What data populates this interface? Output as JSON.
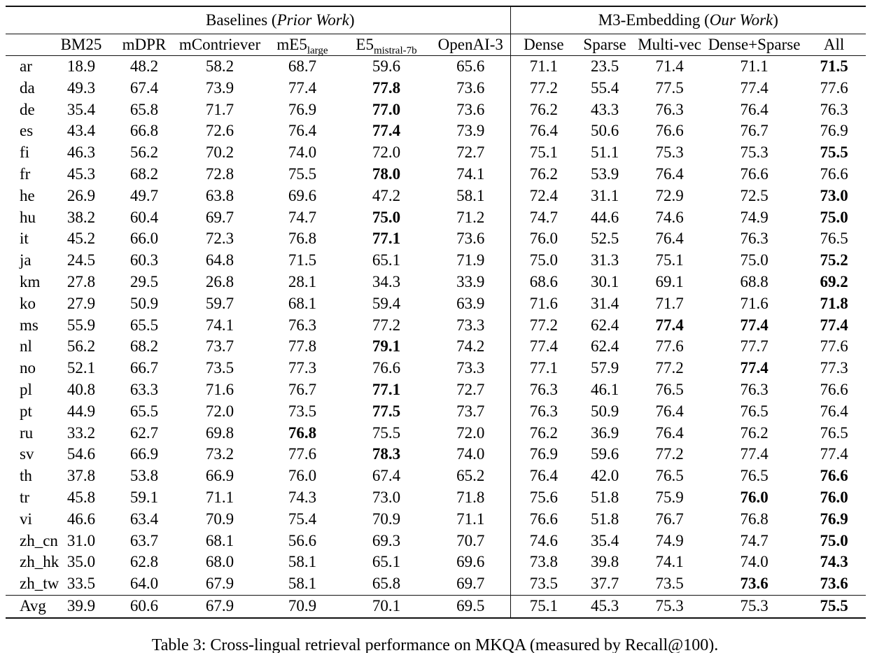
{
  "colors": {
    "text": "#000000",
    "background": "#ffffff",
    "rule": "#111111"
  },
  "table": {
    "groups": [
      {
        "prefix": "Baselines (",
        "italic": "Prior Work",
        "suffix": ")"
      },
      {
        "prefix": "M3-Embedding (",
        "italic": "Our Work",
        "suffix": ")"
      }
    ],
    "columns": [
      {
        "label": "BM25"
      },
      {
        "label": "mDPR"
      },
      {
        "label": "mContriever"
      },
      {
        "label": "mE5",
        "sub": "large"
      },
      {
        "label": "E5",
        "sub": "mistral-7b"
      },
      {
        "label": "OpenAI-3"
      },
      {
        "label": "Dense"
      },
      {
        "label": "Sparse"
      },
      {
        "label": "Multi-vec"
      },
      {
        "label": "Dense+Sparse"
      },
      {
        "label": "All"
      }
    ],
    "rows": [
      {
        "lang": "ar",
        "values": [
          "18.9",
          "48.2",
          "58.2",
          "68.7",
          "59.6",
          "65.6",
          "71.1",
          "23.5",
          "71.4",
          "71.1",
          "71.5"
        ],
        "bold": [
          10
        ]
      },
      {
        "lang": "da",
        "values": [
          "49.3",
          "67.4",
          "73.9",
          "77.4",
          "77.8",
          "73.6",
          "77.2",
          "55.4",
          "77.5",
          "77.4",
          "77.6"
        ],
        "bold": [
          4
        ]
      },
      {
        "lang": "de",
        "values": [
          "35.4",
          "65.8",
          "71.7",
          "76.9",
          "77.0",
          "73.6",
          "76.2",
          "43.3",
          "76.3",
          "76.4",
          "76.3"
        ],
        "bold": [
          4
        ]
      },
      {
        "lang": "es",
        "values": [
          "43.4",
          "66.8",
          "72.6",
          "76.4",
          "77.4",
          "73.9",
          "76.4",
          "50.6",
          "76.6",
          "76.7",
          "76.9"
        ],
        "bold": [
          4
        ]
      },
      {
        "lang": "fi",
        "values": [
          "46.3",
          "56.2",
          "70.2",
          "74.0",
          "72.0",
          "72.7",
          "75.1",
          "51.1",
          "75.3",
          "75.3",
          "75.5"
        ],
        "bold": [
          10
        ]
      },
      {
        "lang": "fr",
        "values": [
          "45.3",
          "68.2",
          "72.8",
          "75.5",
          "78.0",
          "74.1",
          "76.2",
          "53.9",
          "76.4",
          "76.6",
          "76.6"
        ],
        "bold": [
          4
        ]
      },
      {
        "lang": "he",
        "values": [
          "26.9",
          "49.7",
          "63.8",
          "69.6",
          "47.2",
          "58.1",
          "72.4",
          "31.1",
          "72.9",
          "72.5",
          "73.0"
        ],
        "bold": [
          10
        ]
      },
      {
        "lang": "hu",
        "values": [
          "38.2",
          "60.4",
          "69.7",
          "74.7",
          "75.0",
          "71.2",
          "74.7",
          "44.6",
          "74.6",
          "74.9",
          "75.0"
        ],
        "bold": [
          4,
          10
        ]
      },
      {
        "lang": "it",
        "values": [
          "45.2",
          "66.0",
          "72.3",
          "76.8",
          "77.1",
          "73.6",
          "76.0",
          "52.5",
          "76.4",
          "76.3",
          "76.5"
        ],
        "bold": [
          4
        ]
      },
      {
        "lang": "ja",
        "values": [
          "24.5",
          "60.3",
          "64.8",
          "71.5",
          "65.1",
          "71.9",
          "75.0",
          "31.3",
          "75.1",
          "75.0",
          "75.2"
        ],
        "bold": [
          10
        ]
      },
      {
        "lang": "km",
        "values": [
          "27.8",
          "29.5",
          "26.8",
          "28.1",
          "34.3",
          "33.9",
          "68.6",
          "30.1",
          "69.1",
          "68.8",
          "69.2"
        ],
        "bold": [
          10
        ]
      },
      {
        "lang": "ko",
        "values": [
          "27.9",
          "50.9",
          "59.7",
          "68.1",
          "59.4",
          "63.9",
          "71.6",
          "31.4",
          "71.7",
          "71.6",
          "71.8"
        ],
        "bold": [
          10
        ]
      },
      {
        "lang": "ms",
        "values": [
          "55.9",
          "65.5",
          "74.1",
          "76.3",
          "77.2",
          "73.3",
          "77.2",
          "62.4",
          "77.4",
          "77.4",
          "77.4"
        ],
        "bold": [
          8,
          9,
          10
        ]
      },
      {
        "lang": "nl",
        "values": [
          "56.2",
          "68.2",
          "73.7",
          "77.8",
          "79.1",
          "74.2",
          "77.4",
          "62.4",
          "77.6",
          "77.7",
          "77.6"
        ],
        "bold": [
          4
        ]
      },
      {
        "lang": "no",
        "values": [
          "52.1",
          "66.7",
          "73.5",
          "77.3",
          "76.6",
          "73.3",
          "77.1",
          "57.9",
          "77.2",
          "77.4",
          "77.3"
        ],
        "bold": [
          9
        ]
      },
      {
        "lang": "pl",
        "values": [
          "40.8",
          "63.3",
          "71.6",
          "76.7",
          "77.1",
          "72.7",
          "76.3",
          "46.1",
          "76.5",
          "76.3",
          "76.6"
        ],
        "bold": [
          4
        ]
      },
      {
        "lang": "pt",
        "values": [
          "44.9",
          "65.5",
          "72.0",
          "73.5",
          "77.5",
          "73.7",
          "76.3",
          "50.9",
          "76.4",
          "76.5",
          "76.4"
        ],
        "bold": [
          4
        ]
      },
      {
        "lang": "ru",
        "values": [
          "33.2",
          "62.7",
          "69.8",
          "76.8",
          "75.5",
          "72.0",
          "76.2",
          "36.9",
          "76.4",
          "76.2",
          "76.5"
        ],
        "bold": [
          3
        ]
      },
      {
        "lang": "sv",
        "values": [
          "54.6",
          "66.9",
          "73.2",
          "77.6",
          "78.3",
          "74.0",
          "76.9",
          "59.6",
          "77.2",
          "77.4",
          "77.4"
        ],
        "bold": [
          4
        ]
      },
      {
        "lang": "th",
        "values": [
          "37.8",
          "53.8",
          "66.9",
          "76.0",
          "67.4",
          "65.2",
          "76.4",
          "42.0",
          "76.5",
          "76.5",
          "76.6"
        ],
        "bold": [
          10
        ]
      },
      {
        "lang": "tr",
        "values": [
          "45.8",
          "59.1",
          "71.1",
          "74.3",
          "73.0",
          "71.8",
          "75.6",
          "51.8",
          "75.9",
          "76.0",
          "76.0"
        ],
        "bold": [
          9,
          10
        ]
      },
      {
        "lang": "vi",
        "values": [
          "46.6",
          "63.4",
          "70.9",
          "75.4",
          "70.9",
          "71.1",
          "76.6",
          "51.8",
          "76.7",
          "76.8",
          "76.9"
        ],
        "bold": [
          10
        ]
      },
      {
        "lang": "zh_cn",
        "values": [
          "31.0",
          "63.7",
          "68.1",
          "56.6",
          "69.3",
          "70.7",
          "74.6",
          "35.4",
          "74.9",
          "74.7",
          "75.0"
        ],
        "bold": [
          10
        ]
      },
      {
        "lang": "zh_hk",
        "values": [
          "35.0",
          "62.8",
          "68.0",
          "58.1",
          "65.1",
          "69.6",
          "73.8",
          "39.8",
          "74.1",
          "74.0",
          "74.3"
        ],
        "bold": [
          10
        ]
      },
      {
        "lang": "zh_tw",
        "values": [
          "33.5",
          "64.0",
          "67.9",
          "58.1",
          "65.8",
          "69.7",
          "73.5",
          "37.7",
          "73.5",
          "73.6",
          "73.6"
        ],
        "bold": [
          9,
          10
        ]
      }
    ],
    "avg_row": {
      "lang": "Avg",
      "values": [
        "39.9",
        "60.6",
        "67.9",
        "70.9",
        "70.1",
        "69.5",
        "75.1",
        "45.3",
        "75.3",
        "75.3",
        "75.5"
      ],
      "bold": [
        10
      ]
    }
  },
  "caption": "Table 3: Cross-lingual retrieval performance on MKQA (measured by Recall@100)."
}
